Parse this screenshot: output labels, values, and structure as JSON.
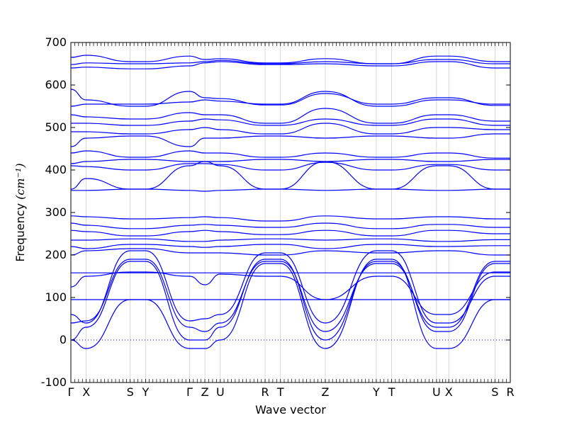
{
  "chart_data": {
    "type": "line",
    "title": "",
    "xlabel": "Wave vector",
    "ylabel": "Frequency",
    "ylabel_unit": "(cm⁻¹)",
    "ylim": [
      -100,
      700
    ],
    "yticks": [
      -100,
      0,
      100,
      200,
      300,
      400,
      500,
      600,
      700
    ],
    "grid": false,
    "legend": "none",
    "zero_line": 0,
    "line_color": "#0000ff",
    "kpath": [
      {
        "label": "Γ",
        "pos": 0.0
      },
      {
        "label": "X",
        "pos": 0.035
      },
      {
        "label": "S",
        "pos": 0.135
      },
      {
        "label": "Y",
        "pos": 0.17
      },
      {
        "label": "Γ",
        "pos": 0.27
      },
      {
        "label": "Z",
        "pos": 0.305
      },
      {
        "label": "U",
        "pos": 0.34
      },
      {
        "label": "R",
        "pos": 0.442
      },
      {
        "label": "T",
        "pos": 0.477
      },
      {
        "label": "Z",
        "pos": 0.579
      },
      {
        "label": "Y",
        "pos": 0.695
      },
      {
        "label": "T",
        "pos": 0.73
      },
      {
        "label": "U",
        "pos": 0.832
      },
      {
        "label": "X",
        "pos": 0.86
      },
      {
        "label": "S",
        "pos": 0.965
      },
      {
        "label": "R",
        "pos": 1.0
      }
    ],
    "series": [
      {
        "x": [
          0,
          0.035,
          0.135,
          0.17,
          0.27,
          0.305,
          0.34,
          0.442,
          0.477,
          0.579,
          0.695,
          0.73,
          0.832,
          0.86,
          0.965,
          1.0
        ],
        "y": [
          0,
          -20,
          95,
          95,
          -20,
          -20,
          0,
          180,
          180,
          -20,
          190,
          190,
          -20,
          -20,
          95,
          95
        ]
      },
      {
        "x": [
          0,
          0.035,
          0.135,
          0.17,
          0.27,
          0.305,
          0.34,
          0.442,
          0.477,
          0.579,
          0.695,
          0.73,
          0.832,
          0.86,
          0.965,
          1.0
        ],
        "y": [
          0,
          30,
          185,
          185,
          0,
          0,
          30,
          190,
          190,
          0,
          185,
          185,
          20,
          20,
          180,
          180
        ]
      },
      {
        "x": [
          0,
          0.035,
          0.135,
          0.17,
          0.27,
          0.305,
          0.34,
          0.442,
          0.477,
          0.579,
          0.695,
          0.73,
          0.832,
          0.86,
          0.965,
          1.0
        ],
        "y": [
          40,
          45,
          190,
          190,
          30,
          20,
          40,
          185,
          185,
          20,
          180,
          180,
          30,
          30,
          185,
          185
        ]
      },
      {
        "x": [
          0,
          0.035,
          0.135,
          0.17,
          0.27,
          0.305,
          0.34,
          0.442,
          0.477,
          0.579,
          0.695,
          0.73,
          0.832,
          0.86,
          0.965,
          1.0
        ],
        "y": [
          60,
          40,
          210,
          210,
          45,
          50,
          60,
          205,
          205,
          40,
          210,
          210,
          40,
          40,
          150,
          150
        ]
      },
      {
        "x": [
          0,
          0.035,
          0.135,
          0.17,
          0.27,
          0.305,
          0.34,
          0.442,
          0.477,
          0.579,
          0.695,
          0.73,
          0.832,
          0.86,
          0.965,
          1.0
        ],
        "y": [
          95,
          95,
          95,
          95,
          95,
          95,
          95,
          95,
          95,
          95,
          95,
          95,
          95,
          95,
          95,
          95
        ]
      },
      {
        "x": [
          0,
          0.035,
          0.135,
          0.17,
          0.27,
          0.305,
          0.34,
          0.442,
          0.477,
          0.579,
          0.695,
          0.73,
          0.832,
          0.86,
          0.965,
          1.0
        ],
        "y": [
          125,
          150,
          160,
          160,
          150,
          130,
          155,
          150,
          150,
          95,
          150,
          150,
          60,
          60,
          160,
          160
        ]
      },
      {
        "x": [
          0,
          0.035,
          0.135,
          0.17,
          0.27,
          0.305,
          0.34,
          0.442,
          0.477,
          0.579,
          0.695,
          0.73,
          0.832,
          0.86,
          0.965,
          1.0
        ],
        "y": [
          158,
          158,
          158,
          158,
          158,
          158,
          158,
          158,
          158,
          158,
          158,
          158,
          158,
          158,
          158,
          158
        ]
      },
      {
        "x": [
          0,
          0.035,
          0.135,
          0.17,
          0.27,
          0.305,
          0.34,
          0.442,
          0.477,
          0.579,
          0.695,
          0.73,
          0.832,
          0.86,
          0.965,
          1.0
        ],
        "y": [
          200,
          210,
          215,
          215,
          205,
          205,
          205,
          200,
          200,
          210,
          205,
          205,
          210,
          210,
          200,
          200
        ]
      },
      {
        "x": [
          0,
          0.035,
          0.135,
          0.17,
          0.27,
          0.305,
          0.34,
          0.442,
          0.477,
          0.579,
          0.695,
          0.73,
          0.832,
          0.86,
          0.965,
          1.0
        ],
        "y": [
          220,
          215,
          225,
          225,
          220,
          218,
          220,
          225,
          225,
          215,
          225,
          225,
          220,
          220,
          222,
          222
        ]
      },
      {
        "x": [
          0,
          0.035,
          0.135,
          0.17,
          0.27,
          0.305,
          0.34,
          0.442,
          0.477,
          0.579,
          0.695,
          0.73,
          0.832,
          0.86,
          0.965,
          1.0
        ],
        "y": [
          235,
          235,
          238,
          238,
          232,
          232,
          235,
          238,
          238,
          235,
          238,
          238,
          232,
          232,
          236,
          236
        ]
      },
      {
        "x": [
          0,
          0.035,
          0.135,
          0.17,
          0.27,
          0.305,
          0.34,
          0.442,
          0.477,
          0.579,
          0.695,
          0.73,
          0.832,
          0.86,
          0.965,
          1.0
        ],
        "y": [
          258,
          255,
          245,
          245,
          255,
          258,
          255,
          248,
          248,
          258,
          245,
          245,
          258,
          258,
          250,
          250
        ]
      },
      {
        "x": [
          0,
          0.035,
          0.135,
          0.17,
          0.27,
          0.305,
          0.34,
          0.442,
          0.477,
          0.579,
          0.695,
          0.73,
          0.832,
          0.86,
          0.965,
          1.0
        ],
        "y": [
          275,
          270,
          262,
          262,
          270,
          272,
          270,
          265,
          265,
          275,
          262,
          262,
          272,
          272,
          265,
          265
        ]
      },
      {
        "x": [
          0,
          0.035,
          0.135,
          0.17,
          0.27,
          0.305,
          0.34,
          0.442,
          0.477,
          0.579,
          0.695,
          0.73,
          0.832,
          0.86,
          0.965,
          1.0
        ],
        "y": [
          292,
          290,
          285,
          285,
          288,
          290,
          288,
          280,
          280,
          292,
          285,
          285,
          290,
          290,
          285,
          285
        ]
      },
      {
        "x": [
          0,
          0.035,
          0.135,
          0.17,
          0.27,
          0.305,
          0.34,
          0.442,
          0.477,
          0.579,
          0.695,
          0.73,
          0.832,
          0.86,
          0.965,
          1.0
        ],
        "y": [
          352,
          352,
          355,
          355,
          352,
          350,
          352,
          355,
          355,
          352,
          355,
          355,
          352,
          352,
          355,
          355
        ]
      },
      {
        "x": [
          0,
          0.035,
          0.135,
          0.17,
          0.27,
          0.305,
          0.34,
          0.442,
          0.477,
          0.579,
          0.695,
          0.73,
          0.832,
          0.86,
          0.965,
          1.0
        ],
        "y": [
          355,
          380,
          355,
          355,
          410,
          420,
          410,
          355,
          355,
          420,
          355,
          355,
          410,
          410,
          355,
          355
        ]
      },
      {
        "x": [
          0,
          0.035,
          0.135,
          0.17,
          0.27,
          0.305,
          0.34,
          0.442,
          0.477,
          0.579,
          0.695,
          0.73,
          0.832,
          0.86,
          0.965,
          1.0
        ],
        "y": [
          410,
          408,
          400,
          400,
          415,
          415,
          413,
          400,
          400,
          418,
          400,
          400,
          413,
          413,
          400,
          400
        ]
      },
      {
        "x": [
          0,
          0.035,
          0.135,
          0.17,
          0.27,
          0.305,
          0.34,
          0.442,
          0.477,
          0.579,
          0.695,
          0.73,
          0.832,
          0.86,
          0.965,
          1.0
        ],
        "y": [
          415,
          420,
          425,
          425,
          420,
          420,
          420,
          425,
          425,
          420,
          425,
          425,
          420,
          420,
          425,
          425
        ]
      },
      {
        "x": [
          0,
          0.035,
          0.135,
          0.17,
          0.27,
          0.305,
          0.34,
          0.442,
          0.477,
          0.579,
          0.695,
          0.73,
          0.832,
          0.86,
          0.965,
          1.0
        ],
        "y": [
          440,
          445,
          430,
          430,
          445,
          440,
          440,
          430,
          430,
          440,
          430,
          430,
          440,
          440,
          428,
          428
        ]
      },
      {
        "x": [
          0,
          0.035,
          0.135,
          0.17,
          0.27,
          0.305,
          0.34,
          0.442,
          0.477,
          0.579,
          0.695,
          0.73,
          0.832,
          0.86,
          0.965,
          1.0
        ],
        "y": [
          455,
          475,
          480,
          480,
          455,
          475,
          475,
          480,
          480,
          475,
          480,
          480,
          475,
          475,
          485,
          485
        ]
      },
      {
        "x": [
          0,
          0.035,
          0.135,
          0.17,
          0.27,
          0.305,
          0.34,
          0.442,
          0.477,
          0.579,
          0.695,
          0.73,
          0.832,
          0.86,
          0.965,
          1.0
        ],
        "y": [
          490,
          490,
          485,
          485,
          495,
          500,
          495,
          485,
          485,
          510,
          485,
          485,
          500,
          500,
          495,
          495
        ]
      },
      {
        "x": [
          0,
          0.035,
          0.135,
          0.17,
          0.27,
          0.305,
          0.34,
          0.442,
          0.477,
          0.579,
          0.695,
          0.73,
          0.832,
          0.86,
          0.965,
          1.0
        ],
        "y": [
          510,
          510,
          505,
          505,
          515,
          520,
          518,
          505,
          505,
          520,
          505,
          505,
          520,
          520,
          505,
          505
        ]
      },
      {
        "x": [
          0,
          0.035,
          0.135,
          0.17,
          0.27,
          0.305,
          0.34,
          0.442,
          0.477,
          0.579,
          0.695,
          0.73,
          0.832,
          0.86,
          0.965,
          1.0
        ],
        "y": [
          530,
          525,
          520,
          520,
          535,
          530,
          530,
          510,
          510,
          545,
          510,
          510,
          530,
          530,
          515,
          515
        ]
      },
      {
        "x": [
          0,
          0.035,
          0.135,
          0.17,
          0.27,
          0.305,
          0.34,
          0.442,
          0.477,
          0.579,
          0.695,
          0.73,
          0.832,
          0.86,
          0.965,
          1.0
        ],
        "y": [
          550,
          555,
          555,
          555,
          560,
          565,
          562,
          555,
          555,
          585,
          550,
          550,
          565,
          565,
          555,
          555
        ]
      },
      {
        "x": [
          0,
          0.035,
          0.135,
          0.17,
          0.27,
          0.305,
          0.34,
          0.442,
          0.477,
          0.579,
          0.695,
          0.73,
          0.832,
          0.86,
          0.965,
          1.0
        ],
        "y": [
          590,
          565,
          550,
          550,
          585,
          570,
          568,
          553,
          553,
          580,
          555,
          555,
          570,
          570,
          552,
          552
        ]
      },
      {
        "x": [
          0,
          0.035,
          0.135,
          0.17,
          0.27,
          0.305,
          0.34,
          0.442,
          0.477,
          0.579,
          0.695,
          0.73,
          0.832,
          0.86,
          0.965,
          1.0
        ],
        "y": [
          640,
          642,
          638,
          638,
          645,
          652,
          655,
          648,
          648,
          650,
          645,
          645,
          655,
          655,
          640,
          640
        ]
      },
      {
        "x": [
          0,
          0.035,
          0.135,
          0.17,
          0.27,
          0.305,
          0.34,
          0.442,
          0.477,
          0.579,
          0.695,
          0.73,
          0.832,
          0.86,
          0.965,
          1.0
        ],
        "y": [
          648,
          652,
          650,
          650,
          652,
          655,
          658,
          650,
          650,
          655,
          650,
          650,
          660,
          660,
          650,
          650
        ]
      },
      {
        "x": [
          0,
          0.035,
          0.135,
          0.17,
          0.27,
          0.305,
          0.34,
          0.442,
          0.477,
          0.579,
          0.695,
          0.73,
          0.832,
          0.86,
          0.965,
          1.0
        ],
        "y": [
          665,
          670,
          655,
          655,
          668,
          660,
          662,
          652,
          652,
          662,
          650,
          650,
          668,
          668,
          655,
          655
        ]
      }
    ]
  }
}
